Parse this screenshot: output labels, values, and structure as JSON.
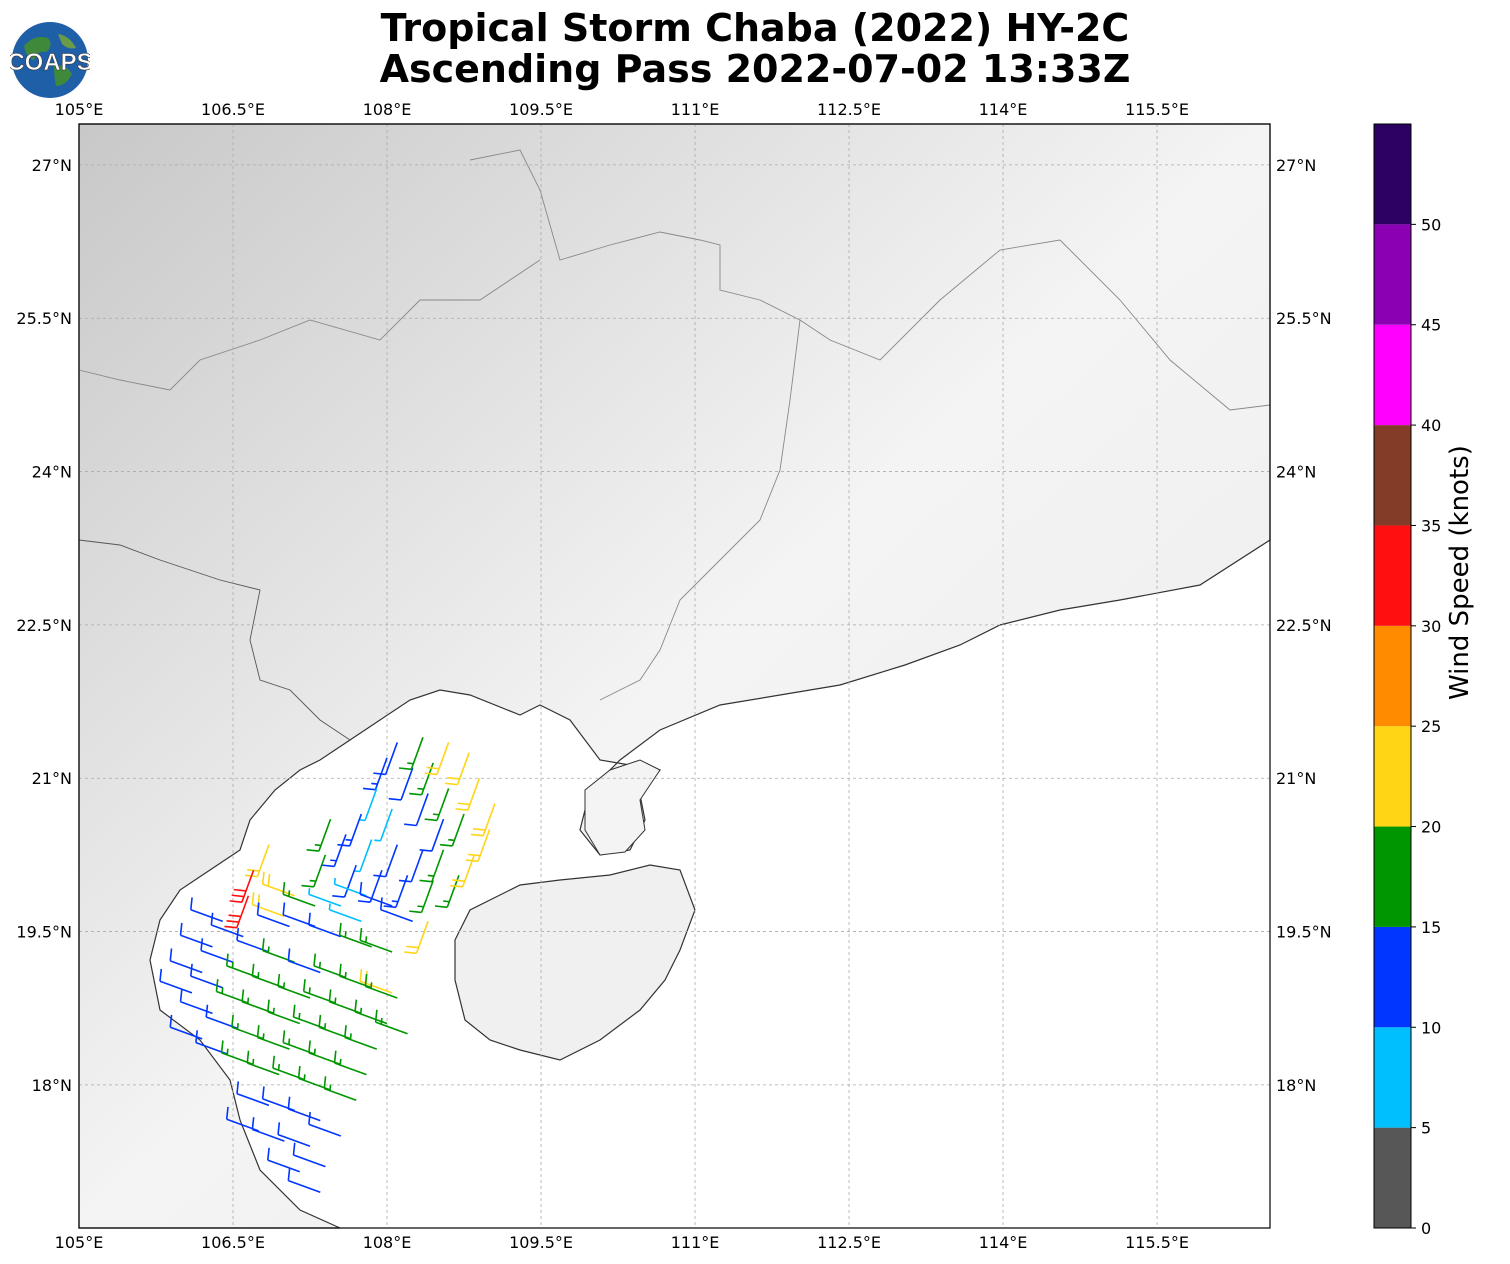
{
  "title": {
    "line1": "Tropical Storm Chaba (2022) HY-2C",
    "line2": "Ascending Pass 2022-07-02 13:33Z"
  },
  "logo": {
    "text": "COAPS",
    "icon": "globe-logo-icon"
  },
  "map": {
    "lon_range": [
      105.0,
      116.6
    ],
    "lat_range": [
      16.6,
      27.4
    ],
    "lon_ticks": [
      {
        "value": 105.0,
        "label": "105°E"
      },
      {
        "value": 106.5,
        "label": "106.5°E"
      },
      {
        "value": 108.0,
        "label": "108°E"
      },
      {
        "value": 109.5,
        "label": "109.5°E"
      },
      {
        "value": 111.0,
        "label": "111°E"
      },
      {
        "value": 112.5,
        "label": "112.5°E"
      },
      {
        "value": 114.0,
        "label": "114°E"
      },
      {
        "value": 115.5,
        "label": "115.5°E"
      }
    ],
    "lat_ticks": [
      {
        "value": 27.0,
        "label": "27°N"
      },
      {
        "value": 25.5,
        "label": "25.5°N"
      },
      {
        "value": 24.0,
        "label": "24°N"
      },
      {
        "value": 22.5,
        "label": "22.5°N"
      },
      {
        "value": 21.0,
        "label": "21°N"
      },
      {
        "value": 19.5,
        "label": "19.5°N"
      },
      {
        "value": 18.0,
        "label": "18°N"
      }
    ],
    "grid": true,
    "background": "grayscale terrain over land, white ocean"
  },
  "colorbar": {
    "label": "Wind Speed (knots)",
    "bins": [
      {
        "min": 0,
        "max": 5,
        "color": "#575757"
      },
      {
        "min": 5,
        "max": 10,
        "color": "#00bfff"
      },
      {
        "min": 10,
        "max": 15,
        "color": "#0036ff"
      },
      {
        "min": 15,
        "max": 20,
        "color": "#009600"
      },
      {
        "min": 20,
        "max": 25,
        "color": "#ffd516"
      },
      {
        "min": 25,
        "max": 30,
        "color": "#ff8c00"
      },
      {
        "min": 30,
        "max": 35,
        "color": "#ff0f0f"
      },
      {
        "min": 35,
        "max": 40,
        "color": "#823c28"
      },
      {
        "min": 40,
        "max": 45,
        "color": "#ff00ff"
      },
      {
        "min": 45,
        "max": 50,
        "color": "#8c00b4"
      },
      {
        "min": 50,
        "max": 55,
        "color": "#2d0064"
      }
    ],
    "tick_labels": [
      "0",
      "5",
      "10",
      "15",
      "20",
      "25",
      "30",
      "35",
      "40",
      "45",
      "50"
    ]
  },
  "chart_data": {
    "type": "scatter",
    "description_series": "wind barbs",
    "series": [
      {
        "name": "",
        "points": [
          {
            "lon": 108.1,
            "lat": 21.35,
            "kt": 12,
            "dir": 110
          },
          {
            "lon": 108.25,
            "lat": 21.1,
            "kt": 12,
            "dir": 110
          },
          {
            "lon": 108.4,
            "lat": 20.85,
            "kt": 12,
            "dir": 110
          },
          {
            "lon": 108.55,
            "lat": 20.6,
            "kt": 12,
            "dir": 110
          },
          {
            "lon": 108.0,
            "lat": 21.2,
            "kt": 13,
            "dir": 110
          },
          {
            "lon": 107.9,
            "lat": 20.9,
            "kt": 7,
            "dir": 110
          },
          {
            "lon": 108.05,
            "lat": 20.7,
            "kt": 7,
            "dir": 110
          },
          {
            "lon": 107.75,
            "lat": 20.65,
            "kt": 13,
            "dir": 110
          },
          {
            "lon": 107.6,
            "lat": 20.45,
            "kt": 13,
            "dir": 110
          },
          {
            "lon": 107.85,
            "lat": 20.4,
            "kt": 7,
            "dir": 110
          },
          {
            "lon": 108.1,
            "lat": 20.35,
            "kt": 12,
            "dir": 110
          },
          {
            "lon": 108.35,
            "lat": 20.3,
            "kt": 12,
            "dir": 110
          },
          {
            "lon": 107.7,
            "lat": 20.15,
            "kt": 12,
            "dir": 110
          },
          {
            "lon": 107.95,
            "lat": 20.1,
            "kt": 12,
            "dir": 110
          },
          {
            "lon": 108.2,
            "lat": 20.05,
            "kt": 13,
            "dir": 110
          },
          {
            "lon": 108.45,
            "lat": 20.0,
            "kt": 17,
            "dir": 110
          },
          {
            "lon": 107.45,
            "lat": 20.6,
            "kt": 17,
            "dir": 110
          },
          {
            "lon": 107.4,
            "lat": 20.25,
            "kt": 17,
            "dir": 110
          },
          {
            "lon": 108.35,
            "lat": 21.4,
            "kt": 17,
            "dir": 110
          },
          {
            "lon": 108.45,
            "lat": 21.15,
            "kt": 17,
            "dir": 110
          },
          {
            "lon": 108.6,
            "lat": 20.9,
            "kt": 17,
            "dir": 110
          },
          {
            "lon": 108.75,
            "lat": 20.65,
            "kt": 17,
            "dir": 110
          },
          {
            "lon": 108.55,
            "lat": 20.3,
            "kt": 17,
            "dir": 110
          },
          {
            "lon": 108.7,
            "lat": 20.05,
            "kt": 17,
            "dir": 110
          },
          {
            "lon": 108.6,
            "lat": 21.35,
            "kt": 22,
            "dir": 110
          },
          {
            "lon": 108.8,
            "lat": 21.25,
            "kt": 22,
            "dir": 110
          },
          {
            "lon": 108.9,
            "lat": 21.0,
            "kt": 22,
            "dir": 110
          },
          {
            "lon": 109.05,
            "lat": 20.75,
            "kt": 22,
            "dir": 110
          },
          {
            "lon": 109.0,
            "lat": 20.5,
            "kt": 22,
            "dir": 110
          },
          {
            "lon": 108.85,
            "lat": 20.25,
            "kt": 22,
            "dir": 110
          },
          {
            "lon": 106.85,
            "lat": 20.35,
            "kt": 22,
            "dir": 110
          },
          {
            "lon": 106.7,
            "lat": 20.1,
            "kt": 32,
            "dir": 110
          },
          {
            "lon": 106.65,
            "lat": 19.85,
            "kt": 32,
            "dir": 110
          },
          {
            "lon": 107.1,
            "lat": 19.85,
            "kt": 22,
            "dir": 200
          },
          {
            "lon": 107.0,
            "lat": 19.65,
            "kt": 22,
            "dir": 200
          },
          {
            "lon": 108.4,
            "lat": 19.6,
            "kt": 22,
            "dir": 110
          },
          {
            "lon": 108.05,
            "lat": 18.9,
            "kt": 22,
            "dir": 200
          },
          {
            "lon": 107.75,
            "lat": 19.6,
            "kt": 7,
            "dir": 200
          },
          {
            "lon": 107.55,
            "lat": 19.75,
            "kt": 7,
            "dir": 200
          },
          {
            "lon": 107.3,
            "lat": 19.75,
            "kt": 17,
            "dir": 200
          },
          {
            "lon": 107.8,
            "lat": 19.85,
            "kt": 7,
            "dir": 200
          },
          {
            "lon": 108.05,
            "lat": 19.75,
            "kt": 12,
            "dir": 200
          },
          {
            "lon": 108.25,
            "lat": 19.6,
            "kt": 12,
            "dir": 200
          },
          {
            "lon": 107.05,
            "lat": 19.55,
            "kt": 12,
            "dir": 200
          },
          {
            "lon": 107.3,
            "lat": 19.55,
            "kt": 12,
            "dir": 200
          },
          {
            "lon": 107.55,
            "lat": 19.45,
            "kt": 12,
            "dir": 200
          },
          {
            "lon": 107.85,
            "lat": 19.35,
            "kt": 17,
            "dir": 200
          },
          {
            "lon": 108.05,
            "lat": 19.3,
            "kt": 17,
            "dir": 200
          },
          {
            "lon": 106.4,
            "lat": 19.6,
            "kt": 12,
            "dir": 200
          },
          {
            "lon": 106.3,
            "lat": 19.35,
            "kt": 12,
            "dir": 200
          },
          {
            "lon": 106.2,
            "lat": 19.1,
            "kt": 12,
            "dir": 200
          },
          {
            "lon": 106.1,
            "lat": 18.9,
            "kt": 12,
            "dir": 200
          },
          {
            "lon": 106.6,
            "lat": 19.45,
            "kt": 12,
            "dir": 200
          },
          {
            "lon": 106.5,
            "lat": 19.2,
            "kt": 12,
            "dir": 200
          },
          {
            "lon": 106.4,
            "lat": 18.95,
            "kt": 12,
            "dir": 200
          },
          {
            "lon": 106.3,
            "lat": 18.7,
            "kt": 12,
            "dir": 200
          },
          {
            "lon": 106.2,
            "lat": 18.45,
            "kt": 12,
            "dir": 200
          },
          {
            "lon": 106.85,
            "lat": 19.3,
            "kt": 12,
            "dir": 200
          },
          {
            "lon": 106.75,
            "lat": 19.05,
            "kt": 17,
            "dir": 200
          },
          {
            "lon": 106.65,
            "lat": 18.8,
            "kt": 17,
            "dir": 200
          },
          {
            "lon": 106.55,
            "lat": 18.55,
            "kt": 12,
            "dir": 200
          },
          {
            "lon": 106.45,
            "lat": 18.3,
            "kt": 12,
            "dir": 200
          },
          {
            "lon": 107.1,
            "lat": 19.2,
            "kt": 17,
            "dir": 200
          },
          {
            "lon": 107.0,
            "lat": 18.95,
            "kt": 17,
            "dir": 200
          },
          {
            "lon": 106.9,
            "lat": 18.7,
            "kt": 17,
            "dir": 200
          },
          {
            "lon": 106.8,
            "lat": 18.45,
            "kt": 17,
            "dir": 200
          },
          {
            "lon": 106.7,
            "lat": 18.2,
            "kt": 17,
            "dir": 200
          },
          {
            "lon": 107.35,
            "lat": 19.1,
            "kt": 12,
            "dir": 200
          },
          {
            "lon": 107.25,
            "lat": 18.85,
            "kt": 17,
            "dir": 200
          },
          {
            "lon": 107.15,
            "lat": 18.6,
            "kt": 17,
            "dir": 200
          },
          {
            "lon": 107.05,
            "lat": 18.35,
            "kt": 17,
            "dir": 200
          },
          {
            "lon": 106.95,
            "lat": 18.1,
            "kt": 17,
            "dir": 200
          },
          {
            "lon": 107.6,
            "lat": 19.05,
            "kt": 17,
            "dir": 200
          },
          {
            "lon": 107.5,
            "lat": 18.8,
            "kt": 17,
            "dir": 200
          },
          {
            "lon": 107.4,
            "lat": 18.55,
            "kt": 17,
            "dir": 200
          },
          {
            "lon": 107.3,
            "lat": 18.3,
            "kt": 17,
            "dir": 200
          },
          {
            "lon": 107.2,
            "lat": 18.05,
            "kt": 17,
            "dir": 200
          },
          {
            "lon": 107.85,
            "lat": 18.95,
            "kt": 17,
            "dir": 200
          },
          {
            "lon": 107.75,
            "lat": 18.7,
            "kt": 17,
            "dir": 200
          },
          {
            "lon": 107.65,
            "lat": 18.45,
            "kt": 17,
            "dir": 200
          },
          {
            "lon": 107.55,
            "lat": 18.2,
            "kt": 17,
            "dir": 200
          },
          {
            "lon": 107.45,
            "lat": 17.95,
            "kt": 17,
            "dir": 200
          },
          {
            "lon": 108.1,
            "lat": 18.85,
            "kt": 17,
            "dir": 200
          },
          {
            "lon": 108.0,
            "lat": 18.6,
            "kt": 17,
            "dir": 200
          },
          {
            "lon": 107.9,
            "lat": 18.35,
            "kt": 17,
            "dir": 200
          },
          {
            "lon": 107.8,
            "lat": 18.1,
            "kt": 17,
            "dir": 200
          },
          {
            "lon": 107.7,
            "lat": 17.85,
            "kt": 17,
            "dir": 200
          },
          {
            "lon": 108.2,
            "lat": 18.5,
            "kt": 17,
            "dir": 200
          },
          {
            "lon": 106.85,
            "lat": 17.8,
            "kt": 12,
            "dir": 200
          },
          {
            "lon": 107.1,
            "lat": 17.75,
            "kt": 12,
            "dir": 200
          },
          {
            "lon": 107.35,
            "lat": 17.65,
            "kt": 12,
            "dir": 200
          },
          {
            "lon": 106.75,
            "lat": 17.55,
            "kt": 12,
            "dir": 200
          },
          {
            "lon": 107.0,
            "lat": 17.45,
            "kt": 12,
            "dir": 200
          },
          {
            "lon": 107.25,
            "lat": 17.4,
            "kt": 12,
            "dir": 200
          },
          {
            "lon": 107.55,
            "lat": 17.5,
            "kt": 12,
            "dir": 200
          },
          {
            "lon": 107.15,
            "lat": 17.15,
            "kt": 12,
            "dir": 200
          },
          {
            "lon": 107.4,
            "lat": 17.2,
            "kt": 12,
            "dir": 200
          },
          {
            "lon": 107.35,
            "lat": 16.95,
            "kt": 12,
            "dir": 200
          }
        ]
      }
    ]
  }
}
